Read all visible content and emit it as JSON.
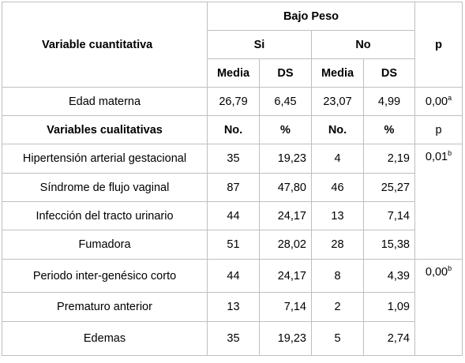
{
  "header": {
    "variable_cuantitativa": "Variable cuantitativa",
    "bajo_peso": "Bajo Peso",
    "si": "Si",
    "no": "No",
    "p": "p",
    "media_si": "Media",
    "ds_si": "DS",
    "media_no": "Media",
    "ds_no": "DS"
  },
  "edad": {
    "label": "Edad materna",
    "si_media": "26,79",
    "si_ds": "6,45",
    "no_media": "23,07",
    "no_ds": "4,99",
    "p": "0,00",
    "p_sup": "a"
  },
  "cual_header": {
    "label": "Variables cualitativas",
    "no_si": "No.",
    "pct_si": "%",
    "no_no": "No.",
    "pct_no": "%",
    "p": "p"
  },
  "rows": [
    {
      "label": "Hipertensión arterial gestacional",
      "si_no": "35",
      "si_pct": "19,23",
      "no_no": "4",
      "no_pct": "2,19"
    },
    {
      "label": "Síndrome de flujo vaginal",
      "si_no": "87",
      "si_pct": "47,80",
      "no_no": "46",
      "no_pct": "25,27"
    },
    {
      "label": "Infección del tracto urinario",
      "si_no": "44",
      "si_pct": "24,17",
      "no_no": "13",
      "no_pct": "7,14"
    },
    {
      "label": "Fumadora",
      "si_no": "51",
      "si_pct": "28,02",
      "no_no": "28",
      "no_pct": "15,38"
    },
    {
      "label": "Periodo inter-genésico corto",
      "si_no": "44",
      "si_pct": "24,17",
      "no_no": "8",
      "no_pct": "4,39"
    },
    {
      "label": "Prematuro anterior",
      "si_no": "13",
      "si_pct": "7,14",
      "no_no": "2",
      "no_pct": "1,09"
    },
    {
      "label": "Edemas",
      "si_no": "35",
      "si_pct": "19,23",
      "no_no": "5",
      "no_pct": "2,74"
    }
  ],
  "p_groups": [
    {
      "value": "0,01",
      "sup": "b"
    },
    {
      "value": "0,00",
      "sup": "b"
    }
  ]
}
